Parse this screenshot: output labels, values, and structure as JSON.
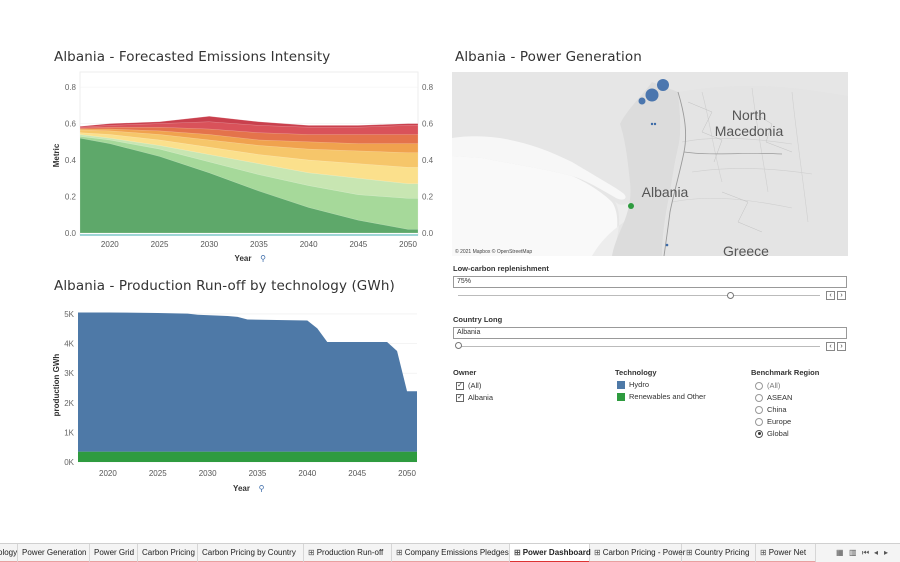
{
  "emissions": {
    "title": "Albania - Forecasted Emissions Intensity",
    "ylabel": "Metric",
    "xlabel": "Year",
    "y_ticks": [
      "0.8",
      "0.6",
      "0.4",
      "0.2",
      "0.0"
    ],
    "x_ticks": [
      "2020",
      "2025",
      "2030",
      "2035",
      "2040",
      "2045",
      "2050"
    ]
  },
  "production": {
    "title": "Albania - Production Run-off by technology (GWh)",
    "ylabel": "production GWh",
    "xlabel": "Year",
    "y_ticks": [
      "5K",
      "4K",
      "3K",
      "2K",
      "1K",
      "0K"
    ],
    "x_ticks": [
      "2020",
      "2025",
      "2030",
      "2035",
      "2040",
      "2045",
      "2050"
    ]
  },
  "chart_data": [
    {
      "type": "area",
      "title": "Albania - Forecasted Emissions Intensity",
      "xlabel": "Year",
      "ylabel": "Metric",
      "xlim": [
        2017,
        2051
      ],
      "ylim": [
        0,
        0.85
      ],
      "x": [
        2017,
        2020,
        2025,
        2030,
        2035,
        2040,
        2045,
        2050,
        2051
      ],
      "series": [
        {
          "values": [
            0.52,
            0.49,
            0.42,
            0.33,
            0.23,
            0.14,
            0.07,
            0.02,
            0.02
          ],
          "color": "#5ea86a"
        },
        {
          "values": [
            0.53,
            0.51,
            0.46,
            0.39,
            0.32,
            0.26,
            0.21,
            0.19,
            0.19
          ],
          "color": "#a6d99a"
        },
        {
          "values": [
            0.54,
            0.52,
            0.48,
            0.43,
            0.38,
            0.33,
            0.3,
            0.27,
            0.27
          ],
          "color": "#c8e6b2"
        },
        {
          "values": [
            0.55,
            0.54,
            0.51,
            0.47,
            0.43,
            0.4,
            0.38,
            0.36,
            0.36
          ],
          "color": "#fbe08c"
        },
        {
          "values": [
            0.565,
            0.56,
            0.54,
            0.51,
            0.48,
            0.46,
            0.45,
            0.44,
            0.44
          ],
          "color": "#f6c66a"
        },
        {
          "values": [
            0.57,
            0.57,
            0.56,
            0.54,
            0.51,
            0.5,
            0.49,
            0.49,
            0.49
          ],
          "color": "#f0a24e"
        },
        {
          "values": [
            0.575,
            0.58,
            0.58,
            0.57,
            0.55,
            0.54,
            0.54,
            0.54,
            0.54
          ],
          "color": "#e4734b"
        },
        {
          "values": [
            0.58,
            0.59,
            0.6,
            0.61,
            0.59,
            0.58,
            0.58,
            0.59,
            0.59
          ],
          "color": "#d9525a"
        },
        {
          "values": [
            0.585,
            0.6,
            0.61,
            0.64,
            0.61,
            0.59,
            0.59,
            0.6,
            0.6
          ],
          "color": "#c9404d"
        }
      ]
    },
    {
      "type": "area",
      "title": "Albania - Production Run-off by technology (GWh)",
      "xlabel": "Year",
      "ylabel": "production GWh",
      "xlim": [
        2017,
        2051
      ],
      "ylim": [
        0,
        5200
      ],
      "x": [
        2017,
        2020,
        2025,
        2028,
        2029,
        2032,
        2033,
        2034,
        2040,
        2041,
        2042,
        2048,
        2049,
        2050,
        2051
      ],
      "series": [
        {
          "name": "Renewables and Other",
          "values": [
            350,
            350,
            350,
            350,
            350,
            350,
            350,
            350,
            350,
            350,
            350,
            350,
            350,
            350,
            350
          ],
          "color": "#2e9b3f"
        },
        {
          "name": "Hydro",
          "values": [
            4700,
            4700,
            4680,
            4660,
            4620,
            4580,
            4550,
            4460,
            4430,
            4160,
            3700,
            3700,
            3400,
            2040,
            2040
          ],
          "color": "#4e79a7"
        }
      ]
    }
  ],
  "map": {
    "title": "Albania - Power Generation",
    "labels": [
      "North",
      "Macedonia",
      "Albania",
      "Greece"
    ],
    "attribution": "© 2021 Mapbox © OpenStreetMap"
  },
  "filters": {
    "lowcarbon": {
      "label": "Low-carbon replenishment",
      "value": "75%",
      "level": 0.75
    },
    "country": {
      "label": "Country Long",
      "value": "Albania",
      "level": 0.0
    }
  },
  "legends": {
    "owner": {
      "title": "Owner",
      "items": [
        "(All)",
        "Albania"
      ]
    },
    "technology": {
      "title": "Technology",
      "items": [
        {
          "label": "Hydro",
          "color": "#4e79a7"
        },
        {
          "label": "Renewables and Other",
          "color": "#2e9b3f"
        }
      ]
    },
    "benchmark": {
      "title": "Benchmark Region",
      "items": [
        "(All)",
        "ASEAN",
        "China",
        "Europe",
        "Global"
      ],
      "selected": "Global"
    }
  },
  "tabs": [
    {
      "label": "ology",
      "glyph": ""
    },
    {
      "label": "Power Generation",
      "glyph": ""
    },
    {
      "label": "Power Grid",
      "glyph": ""
    },
    {
      "label": "Carbon Pricing",
      "glyph": ""
    },
    {
      "label": "Carbon Pricing by Country",
      "glyph": ""
    },
    {
      "label": "Production Run-off",
      "glyph": "⊞"
    },
    {
      "label": "Company Emissions Pledges",
      "glyph": "⊞"
    },
    {
      "label": "Power Dashboard",
      "glyph": "⊞"
    },
    {
      "label": "Carbon Pricing - Power",
      "glyph": "⊞"
    },
    {
      "label": "Country Pricing",
      "glyph": "⊞"
    },
    {
      "label": "Power Net",
      "glyph": "⊞"
    }
  ],
  "active_tab": "Power Dashboard"
}
